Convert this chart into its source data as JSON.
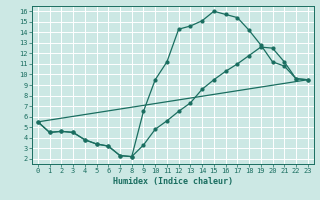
{
  "xlabel": "Humidex (Indice chaleur)",
  "bg_color": "#cce8e4",
  "grid_color": "#ffffff",
  "line_color": "#1a6e60",
  "xlim": [
    -0.5,
    23.5
  ],
  "ylim": [
    1.5,
    16.5
  ],
  "xticks": [
    0,
    1,
    2,
    3,
    4,
    5,
    6,
    7,
    8,
    9,
    10,
    11,
    12,
    13,
    14,
    15,
    16,
    17,
    18,
    19,
    20,
    21,
    22,
    23
  ],
  "yticks": [
    2,
    3,
    4,
    5,
    6,
    7,
    8,
    9,
    10,
    11,
    12,
    13,
    14,
    15,
    16
  ],
  "line1_x": [
    0,
    1,
    2,
    3,
    4,
    5,
    6,
    7,
    8,
    9,
    10,
    11,
    12,
    13,
    14,
    15,
    16,
    17,
    18,
    19,
    20,
    21,
    22,
    23
  ],
  "line1_y": [
    5.5,
    4.5,
    4.6,
    4.5,
    3.8,
    3.4,
    3.2,
    2.3,
    2.2,
    6.5,
    9.5,
    11.2,
    14.3,
    14.6,
    15.1,
    16.0,
    15.7,
    15.4,
    14.2,
    12.8,
    11.2,
    10.8,
    9.6,
    9.5
  ],
  "line2_x": [
    0,
    1,
    2,
    3,
    4,
    5,
    6,
    7,
    8,
    9,
    10,
    11,
    12,
    13,
    14,
    15,
    16,
    17,
    18,
    19,
    20,
    21,
    22,
    23
  ],
  "line2_y": [
    5.5,
    4.5,
    4.6,
    4.5,
    3.8,
    3.4,
    3.2,
    2.3,
    2.2,
    3.3,
    4.8,
    5.6,
    6.5,
    7.3,
    8.6,
    9.5,
    10.3,
    11.0,
    11.8,
    12.6,
    12.5,
    11.2,
    9.6,
    9.5
  ],
  "line3_x": [
    0,
    23
  ],
  "line3_y": [
    5.5,
    9.5
  ]
}
